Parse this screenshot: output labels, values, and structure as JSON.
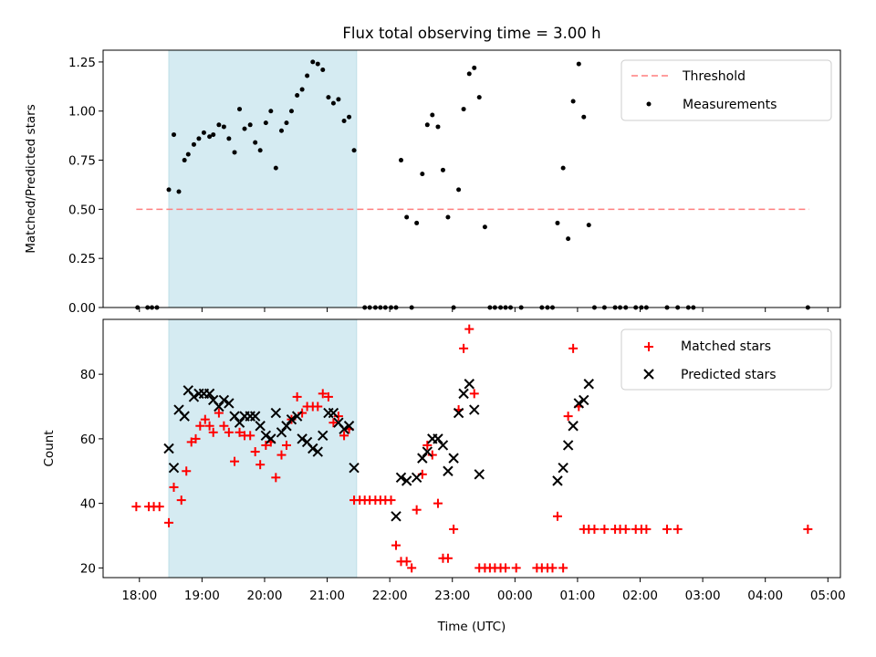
{
  "title": "Flux total observing time = 3.00 h",
  "xlabel": "Time (UTC)",
  "x_ticks": [
    "18:00",
    "19:00",
    "20:00",
    "21:00",
    "22:00",
    "23:00",
    "00:00",
    "01:00",
    "02:00",
    "03:00",
    "04:00",
    "05:00"
  ],
  "colors": {
    "threshold": "#ff7f7f",
    "shade": "#add8e6",
    "matched": "#ff0000",
    "predicted": "#000000",
    "measurement": "#000000"
  },
  "chart_data": [
    {
      "type": "scatter",
      "ylabel": "Matched/Predicted stars",
      "ylim": [
        0,
        1.31
      ],
      "y_ticks": [
        "0.00",
        "0.25",
        "0.50",
        "0.75",
        "1.00",
        "1.25"
      ],
      "y_tick_values": [
        0,
        0.25,
        0.5,
        0.75,
        1.0,
        1.25
      ],
      "x_unit": "hours since 18:00 UTC",
      "xlim": [
        -0.58,
        11.2
      ],
      "shaded_interval": [
        0.47,
        3.47
      ],
      "threshold": {
        "name": "Threshold",
        "y": 0.5,
        "x": [
          -0.05,
          10.7
        ]
      },
      "legend": [
        "Threshold",
        "Measurements"
      ],
      "legend_position": "upper-right",
      "series": [
        {
          "name": "Measurements",
          "points": [
            [
              -0.03,
              0
            ],
            [
              0.13,
              0
            ],
            [
              0.2,
              0
            ],
            [
              0.28,
              0
            ],
            [
              0.47,
              0.6
            ],
            [
              0.55,
              0.88
            ],
            [
              0.63,
              0.59
            ],
            [
              0.72,
              0.75
            ],
            [
              0.78,
              0.78
            ],
            [
              0.87,
              0.83
            ],
            [
              0.95,
              0.86
            ],
            [
              1.03,
              0.89
            ],
            [
              1.12,
              0.87
            ],
            [
              1.18,
              0.88
            ],
            [
              1.27,
              0.93
            ],
            [
              1.35,
              0.92
            ],
            [
              1.43,
              0.86
            ],
            [
              1.52,
              0.79
            ],
            [
              1.6,
              1.01
            ],
            [
              1.68,
              0.91
            ],
            [
              1.77,
              0.93
            ],
            [
              1.85,
              0.84
            ],
            [
              1.93,
              0.8
            ],
            [
              2.02,
              0.94
            ],
            [
              2.1,
              1.0
            ],
            [
              2.18,
              0.71
            ],
            [
              2.27,
              0.9
            ],
            [
              2.35,
              0.94
            ],
            [
              2.43,
              1.0
            ],
            [
              2.52,
              1.08
            ],
            [
              2.6,
              1.11
            ],
            [
              2.68,
              1.18
            ],
            [
              2.77,
              1.25
            ],
            [
              2.85,
              1.24
            ],
            [
              2.93,
              1.21
            ],
            [
              3.02,
              1.07
            ],
            [
              3.1,
              1.04
            ],
            [
              3.18,
              1.06
            ],
            [
              3.27,
              0.95
            ],
            [
              3.35,
              0.97
            ],
            [
              3.43,
              0.8
            ],
            [
              3.6,
              0
            ],
            [
              3.68,
              0
            ],
            [
              3.77,
              0
            ],
            [
              3.85,
              0
            ],
            [
              3.93,
              0
            ],
            [
              4.02,
              0
            ],
            [
              4.1,
              0
            ],
            [
              4.18,
              0.75
            ],
            [
              4.27,
              0.46
            ],
            [
              4.35,
              0
            ],
            [
              4.43,
              0.43
            ],
            [
              4.52,
              0.68
            ],
            [
              4.6,
              0.93
            ],
            [
              4.68,
              0.98
            ],
            [
              4.77,
              0.92
            ],
            [
              4.85,
              0.7
            ],
            [
              4.93,
              0.46
            ],
            [
              5.02,
              0
            ],
            [
              5.1,
              0.6
            ],
            [
              5.18,
              1.01
            ],
            [
              5.27,
              1.19
            ],
            [
              5.35,
              1.22
            ],
            [
              5.43,
              1.07
            ],
            [
              5.52,
              0.41
            ],
            [
              5.6,
              0
            ],
            [
              5.68,
              0
            ],
            [
              5.77,
              0
            ],
            [
              5.85,
              0
            ],
            [
              5.93,
              0
            ],
            [
              6.1,
              0
            ],
            [
              6.43,
              0
            ],
            [
              6.52,
              0
            ],
            [
              6.6,
              0
            ],
            [
              6.68,
              0.43
            ],
            [
              6.77,
              0.71
            ],
            [
              6.85,
              0.35
            ],
            [
              6.93,
              1.05
            ],
            [
              7.02,
              1.24
            ],
            [
              7.1,
              0.97
            ],
            [
              7.18,
              0.42
            ],
            [
              7.27,
              0
            ],
            [
              7.43,
              0
            ],
            [
              7.6,
              0
            ],
            [
              7.68,
              0
            ],
            [
              7.77,
              0
            ],
            [
              7.93,
              0
            ],
            [
              8.02,
              0
            ],
            [
              8.1,
              0
            ],
            [
              8.43,
              0
            ],
            [
              8.6,
              0
            ],
            [
              8.77,
              0
            ],
            [
              8.85,
              0
            ],
            [
              10.68,
              0
            ]
          ]
        }
      ]
    },
    {
      "type": "scatter",
      "ylabel": "Count",
      "ylim": [
        17,
        97
      ],
      "y_ticks": [
        "20",
        "40",
        "60",
        "80"
      ],
      "y_tick_values": [
        20,
        40,
        60,
        80
      ],
      "x_unit": "hours since 18:00 UTC",
      "xlim": [
        -0.58,
        11.2
      ],
      "shaded_interval": [
        0.47,
        3.47
      ],
      "legend": [
        "Matched stars",
        "Predicted stars"
      ],
      "legend_position": "upper-right",
      "series": [
        {
          "name": "Matched stars",
          "marker": "+",
          "points": [
            [
              -0.05,
              39
            ],
            [
              0.15,
              39
            ],
            [
              0.23,
              39
            ],
            [
              0.32,
              39
            ],
            [
              0.47,
              34
            ],
            [
              0.55,
              45
            ],
            [
              0.67,
              41
            ],
            [
              0.75,
              50
            ],
            [
              0.83,
              59
            ],
            [
              0.9,
              60
            ],
            [
              0.97,
              64
            ],
            [
              1.05,
              66
            ],
            [
              1.12,
              64
            ],
            [
              1.18,
              62
            ],
            [
              1.27,
              68
            ],
            [
              1.35,
              64
            ],
            [
              1.43,
              62
            ],
            [
              1.52,
              53
            ],
            [
              1.6,
              62
            ],
            [
              1.68,
              61
            ],
            [
              1.77,
              61
            ],
            [
              1.85,
              56
            ],
            [
              1.93,
              52
            ],
            [
              2.02,
              58
            ],
            [
              2.1,
              59
            ],
            [
              2.18,
              48
            ],
            [
              2.27,
              55
            ],
            [
              2.35,
              58
            ],
            [
              2.43,
              66
            ],
            [
              2.52,
              73
            ],
            [
              2.6,
              68
            ],
            [
              2.68,
              70
            ],
            [
              2.77,
              70
            ],
            [
              2.85,
              70
            ],
            [
              2.93,
              74
            ],
            [
              3.02,
              73
            ],
            [
              3.1,
              65
            ],
            [
              3.18,
              67
            ],
            [
              3.27,
              61
            ],
            [
              3.35,
              63
            ],
            [
              3.43,
              41
            ],
            [
              3.52,
              41
            ],
            [
              3.6,
              41
            ],
            [
              3.68,
              41
            ],
            [
              3.77,
              41
            ],
            [
              3.85,
              41
            ],
            [
              3.93,
              41
            ],
            [
              4.02,
              41
            ],
            [
              4.1,
              27
            ],
            [
              4.18,
              22
            ],
            [
              4.27,
              22
            ],
            [
              4.35,
              20
            ],
            [
              4.43,
              38
            ],
            [
              4.52,
              49
            ],
            [
              4.6,
              58
            ],
            [
              4.68,
              55
            ],
            [
              4.77,
              40
            ],
            [
              4.85,
              23
            ],
            [
              4.93,
              23
            ],
            [
              5.02,
              32
            ],
            [
              5.1,
              69
            ],
            [
              5.18,
              88
            ],
            [
              5.27,
              94
            ],
            [
              5.35,
              74
            ],
            [
              5.43,
              20
            ],
            [
              5.52,
              20
            ],
            [
              5.6,
              20
            ],
            [
              5.68,
              20
            ],
            [
              5.77,
              20
            ],
            [
              5.85,
              20
            ],
            [
              6.02,
              20
            ],
            [
              6.35,
              20
            ],
            [
              6.43,
              20
            ],
            [
              6.52,
              20
            ],
            [
              6.6,
              20
            ],
            [
              6.68,
              36
            ],
            [
              6.77,
              20
            ],
            [
              6.85,
              67
            ],
            [
              6.93,
              88
            ],
            [
              7.02,
              70
            ],
            [
              7.1,
              32
            ],
            [
              7.18,
              32
            ],
            [
              7.27,
              32
            ],
            [
              7.43,
              32
            ],
            [
              7.6,
              32
            ],
            [
              7.68,
              32
            ],
            [
              7.77,
              32
            ],
            [
              7.93,
              32
            ],
            [
              8.02,
              32
            ],
            [
              8.1,
              32
            ],
            [
              8.43,
              32
            ],
            [
              8.6,
              32
            ],
            [
              10.68,
              32
            ]
          ]
        },
        {
          "name": "Predicted stars",
          "marker": "x",
          "points": [
            [
              0.47,
              57
            ],
            [
              0.55,
              51
            ],
            [
              0.63,
              69
            ],
            [
              0.72,
              67
            ],
            [
              0.78,
              75
            ],
            [
              0.87,
              73
            ],
            [
              0.95,
              74
            ],
            [
              1.03,
              74
            ],
            [
              1.12,
              74
            ],
            [
              1.18,
              72
            ],
            [
              1.27,
              70
            ],
            [
              1.35,
              72
            ],
            [
              1.43,
              71
            ],
            [
              1.52,
              67
            ],
            [
              1.6,
              65
            ],
            [
              1.68,
              67
            ],
            [
              1.77,
              67
            ],
            [
              1.85,
              67
            ],
            [
              1.93,
              64
            ],
            [
              2.02,
              61
            ],
            [
              2.1,
              60
            ],
            [
              2.18,
              68
            ],
            [
              2.27,
              62
            ],
            [
              2.35,
              64
            ],
            [
              2.43,
              66
            ],
            [
              2.52,
              67
            ],
            [
              2.6,
              60
            ],
            [
              2.68,
              59
            ],
            [
              2.77,
              57
            ],
            [
              2.85,
              56
            ],
            [
              2.93,
              61
            ],
            [
              3.02,
              68
            ],
            [
              3.1,
              68
            ],
            [
              3.18,
              65
            ],
            [
              3.27,
              63
            ],
            [
              3.35,
              64
            ],
            [
              3.43,
              51
            ],
            [
              4.1,
              36
            ],
            [
              4.18,
              48
            ],
            [
              4.27,
              47
            ],
            [
              4.43,
              48
            ],
            [
              4.52,
              54
            ],
            [
              4.6,
              56
            ],
            [
              4.68,
              60
            ],
            [
              4.77,
              60
            ],
            [
              4.85,
              58
            ],
            [
              4.93,
              50
            ],
            [
              5.02,
              54
            ],
            [
              5.1,
              68
            ],
            [
              5.18,
              74
            ],
            [
              5.27,
              77
            ],
            [
              5.35,
              69
            ],
            [
              5.43,
              49
            ],
            [
              6.68,
              47
            ],
            [
              6.77,
              51
            ],
            [
              6.85,
              58
            ],
            [
              6.93,
              64
            ],
            [
              7.02,
              71
            ],
            [
              7.1,
              72
            ],
            [
              7.18,
              77
            ]
          ]
        }
      ]
    }
  ]
}
